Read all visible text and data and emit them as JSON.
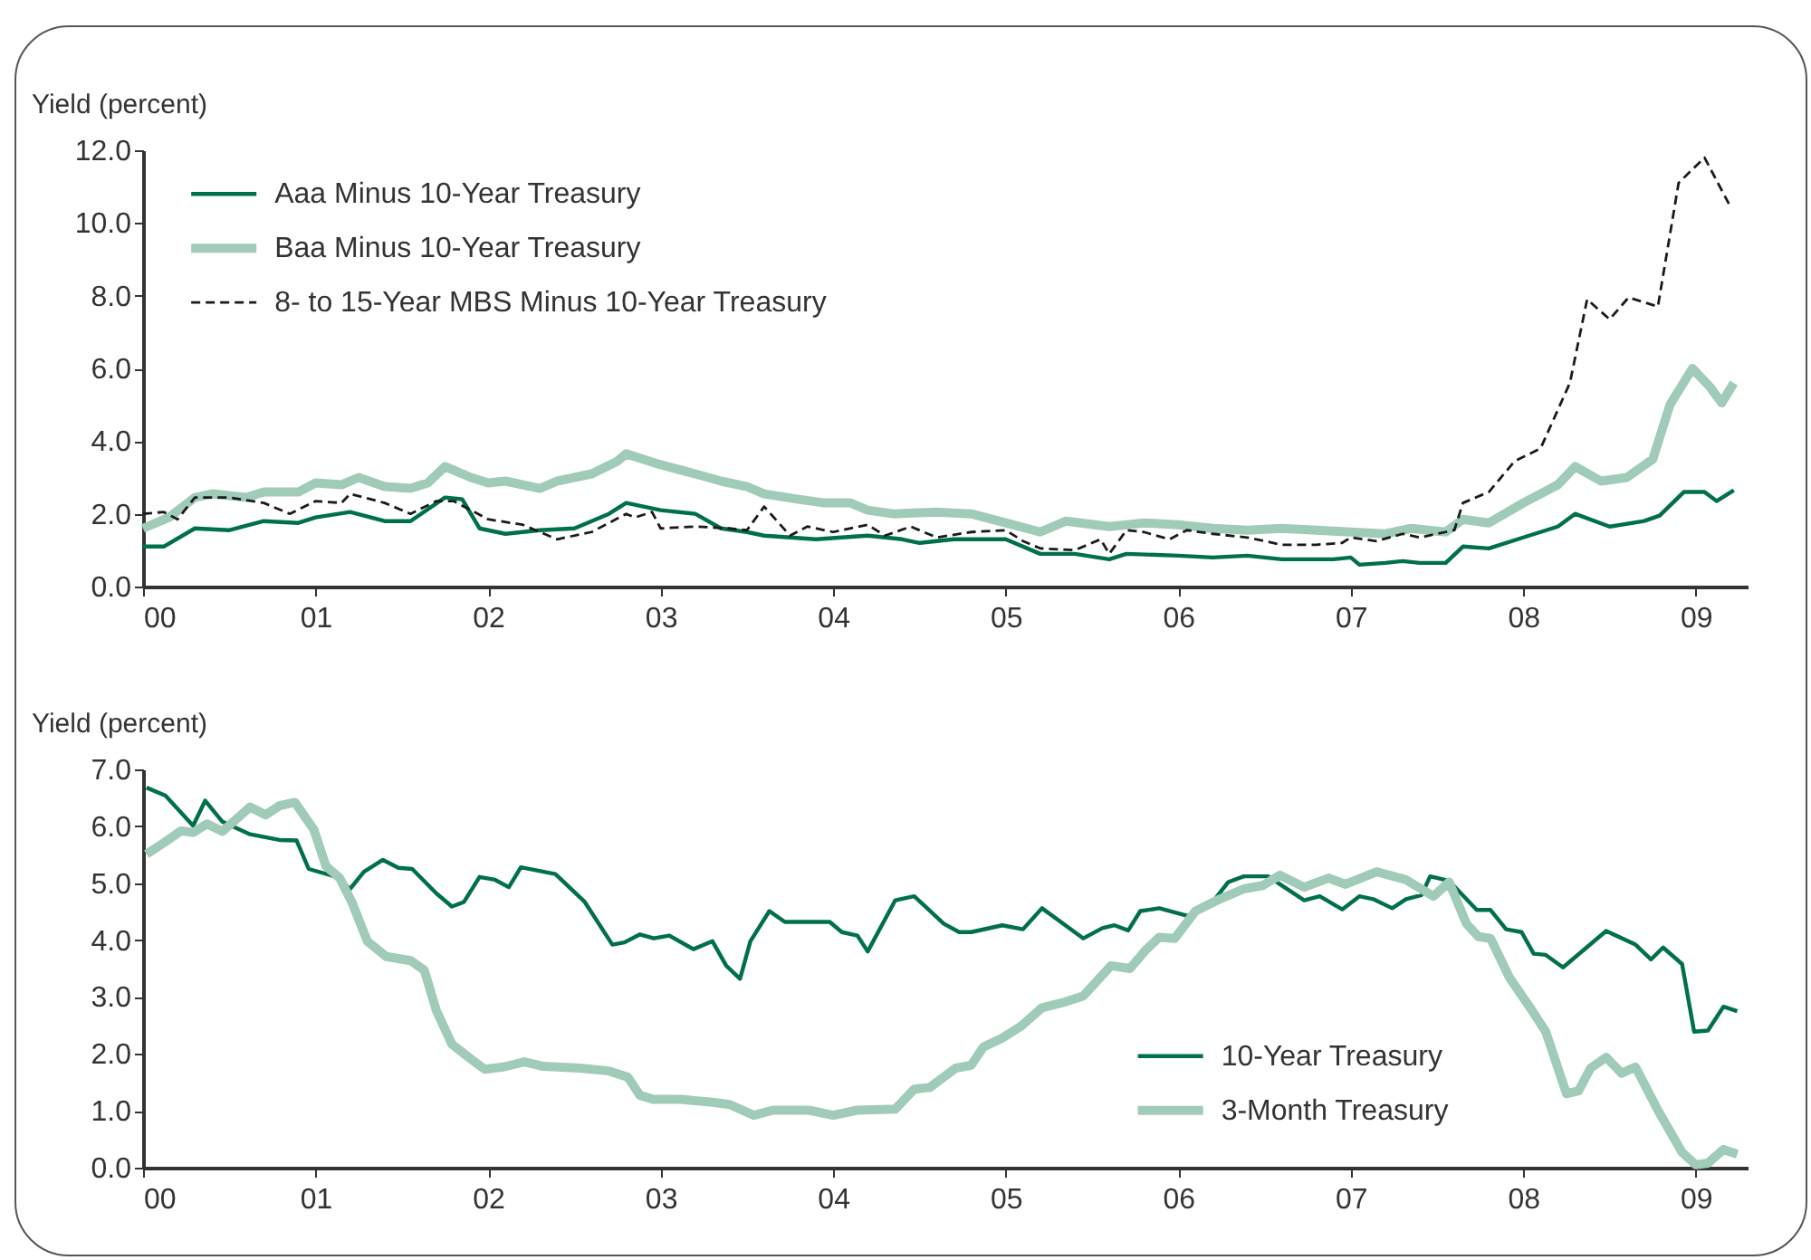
{
  "chart_data": [
    {
      "type": "line",
      "ylabel": "Yield (percent)",
      "legend": "top left",
      "xlim": [
        2000,
        2009.3
      ],
      "xticks": [
        {
          "value": 2000,
          "label": "00"
        },
        {
          "value": 2001,
          "label": "01"
        },
        {
          "value": 2002,
          "label": "02"
        },
        {
          "value": 2003,
          "label": "03"
        },
        {
          "value": 2004,
          "label": "04"
        },
        {
          "value": 2005,
          "label": "05"
        },
        {
          "value": 2006,
          "label": "06"
        },
        {
          "value": 2007,
          "label": "07"
        },
        {
          "value": 2008,
          "label": "08"
        },
        {
          "value": 2009,
          "label": "09"
        }
      ],
      "ylim": [
        0,
        12
      ],
      "yticks": [
        {
          "value": 0,
          "label": "0.0"
        },
        {
          "value": 2,
          "label": "2.0"
        },
        {
          "value": 4,
          "label": "4.0"
        },
        {
          "value": 6,
          "label": "6.0"
        },
        {
          "value": 8,
          "label": "8.0"
        },
        {
          "value": 10,
          "label": "10.0"
        },
        {
          "value": 12,
          "label": "12.0"
        }
      ],
      "series": [
        {
          "name": "Aaa Minus 10-Year Treasury",
          "color": "#00704a",
          "line_style": "solid",
          "x": [
            2000.0,
            2000.12,
            2000.3,
            2000.5,
            2000.7,
            2000.9,
            2001.0,
            2001.2,
            2001.4,
            2001.55,
            2001.75,
            2001.85,
            2001.95,
            2002.1,
            2002.3,
            2002.5,
            2002.7,
            2002.8,
            2003.0,
            2003.2,
            2003.35,
            2003.5,
            2003.6,
            2003.9,
            2004.2,
            2004.4,
            2004.5,
            2004.7,
            2005.0,
            2005.2,
            2005.4,
            2005.6,
            2005.7,
            2006.0,
            2006.2,
            2006.4,
            2006.6,
            2006.9,
            2007.0,
            2007.05,
            2007.2,
            2007.3,
            2007.4,
            2007.55,
            2007.65,
            2007.8,
            2008.0,
            2008.2,
            2008.3,
            2008.5,
            2008.7,
            2008.79,
            2008.93,
            2009.05,
            2009.12,
            2009.22
          ],
          "values": [
            1.1,
            1.1,
            1.6,
            1.55,
            1.8,
            1.75,
            1.9,
            2.05,
            1.8,
            1.8,
            2.45,
            2.4,
            1.6,
            1.45,
            1.55,
            1.6,
            2.0,
            2.3,
            2.1,
            2.0,
            1.6,
            1.5,
            1.4,
            1.3,
            1.4,
            1.3,
            1.2,
            1.3,
            1.3,
            0.9,
            0.9,
            0.75,
            0.9,
            0.85,
            0.8,
            0.85,
            0.75,
            0.75,
            0.8,
            0.6,
            0.65,
            0.7,
            0.65,
            0.65,
            1.1,
            1.05,
            1.35,
            1.65,
            2.0,
            1.65,
            1.8,
            1.95,
            2.6,
            2.6,
            2.35,
            2.65
          ]
        },
        {
          "name": "Baa Minus 10-Year Treasury",
          "color": "#9fcbb8",
          "line_style": "solid",
          "x": [
            2000.0,
            2000.15,
            2000.3,
            2000.4,
            2000.6,
            2000.7,
            2000.9,
            2001.0,
            2001.15,
            2001.25,
            2001.4,
            2001.55,
            2001.65,
            2001.75,
            2001.9,
            2002.0,
            2002.1,
            2002.3,
            2002.4,
            2002.6,
            2002.75,
            2002.8,
            2003.0,
            2003.2,
            2003.35,
            2003.5,
            2003.6,
            2003.8,
            2003.95,
            2004.1,
            2004.2,
            2004.35,
            2004.6,
            2004.8,
            2005.0,
            2005.2,
            2005.35,
            2005.6,
            2005.8,
            2006.0,
            2006.2,
            2006.4,
            2006.6,
            2006.8,
            2007.0,
            2007.2,
            2007.35,
            2007.55,
            2007.65,
            2007.8,
            2008.0,
            2008.2,
            2008.3,
            2008.45,
            2008.6,
            2008.75,
            2008.85,
            2008.98,
            2009.08,
            2009.15,
            2009.22
          ],
          "values": [
            1.6,
            1.9,
            2.45,
            2.55,
            2.45,
            2.6,
            2.6,
            2.85,
            2.8,
            3.0,
            2.75,
            2.7,
            2.85,
            3.3,
            3.0,
            2.85,
            2.9,
            2.7,
            2.9,
            3.1,
            3.45,
            3.65,
            3.35,
            3.1,
            2.9,
            2.75,
            2.55,
            2.4,
            2.3,
            2.3,
            2.1,
            2.0,
            2.05,
            2.0,
            1.75,
            1.5,
            1.8,
            1.65,
            1.75,
            1.7,
            1.6,
            1.55,
            1.6,
            1.55,
            1.5,
            1.45,
            1.6,
            1.5,
            1.85,
            1.75,
            2.3,
            2.8,
            3.3,
            2.9,
            3.0,
            3.5,
            5.0,
            6.0,
            5.5,
            5.05,
            5.6
          ]
        },
        {
          "name": "8- to 15-Year MBS Minus 10-Year Treasury",
          "color": "#1a1a1a",
          "line_style": "dashed",
          "x": [
            2000.0,
            2000.12,
            2000.2,
            2000.3,
            2000.5,
            2000.7,
            2000.85,
            2001.0,
            2001.15,
            2001.2,
            2001.4,
            2001.55,
            2001.7,
            2001.8,
            2002.0,
            2002.2,
            2002.4,
            2002.6,
            2002.8,
            2002.85,
            2002.95,
            2003.0,
            2003.2,
            2003.4,
            2003.5,
            2003.6,
            2003.75,
            2003.85,
            2004.0,
            2004.2,
            2004.3,
            2004.45,
            2004.6,
            2004.8,
            2005.0,
            2005.1,
            2005.2,
            2005.4,
            2005.55,
            2005.6,
            2005.7,
            2005.8,
            2005.95,
            2006.05,
            2006.2,
            2006.4,
            2006.6,
            2006.8,
            2006.95,
            2007.0,
            2007.15,
            2007.3,
            2007.4,
            2007.55,
            2007.6,
            2007.65,
            2007.8,
            2007.95,
            2008.1,
            2008.27,
            2008.37,
            2008.5,
            2008.61,
            2008.78,
            2008.9,
            2009.05,
            2009.2
          ],
          "values": [
            2.0,
            2.05,
            1.85,
            2.45,
            2.45,
            2.3,
            2.0,
            2.35,
            2.3,
            2.55,
            2.3,
            2.0,
            2.35,
            2.35,
            1.85,
            1.7,
            1.3,
            1.5,
            2.0,
            1.9,
            2.05,
            1.6,
            1.65,
            1.6,
            1.55,
            2.2,
            1.4,
            1.65,
            1.5,
            1.7,
            1.4,
            1.65,
            1.35,
            1.5,
            1.55,
            1.25,
            1.05,
            1.0,
            1.3,
            0.9,
            1.55,
            1.5,
            1.3,
            1.55,
            1.45,
            1.35,
            1.15,
            1.15,
            1.2,
            1.35,
            1.25,
            1.45,
            1.35,
            1.5,
            1.55,
            2.3,
            2.6,
            3.45,
            3.8,
            5.6,
            7.9,
            7.35,
            7.95,
            7.7,
            11.1,
            11.8,
            10.45
          ]
        }
      ]
    },
    {
      "type": "line",
      "ylabel": "Yield (percent)",
      "legend": "bottom right",
      "xlim": [
        2000,
        2009.3
      ],
      "xticks": [
        {
          "value": 2000,
          "label": "00"
        },
        {
          "value": 2001,
          "label": "01"
        },
        {
          "value": 2002,
          "label": "02"
        },
        {
          "value": 2003,
          "label": "03"
        },
        {
          "value": 2004,
          "label": "04"
        },
        {
          "value": 2005,
          "label": "05"
        },
        {
          "value": 2006,
          "label": "06"
        },
        {
          "value": 2007,
          "label": "07"
        },
        {
          "value": 2008,
          "label": "08"
        },
        {
          "value": 2009,
          "label": "09"
        }
      ],
      "ylim": [
        0,
        7
      ],
      "yticks": [
        {
          "value": 0,
          "label": "0.0"
        },
        {
          "value": 1,
          "label": "1.0"
        },
        {
          "value": 2,
          "label": "2.0"
        },
        {
          "value": 3,
          "label": "3.0"
        },
        {
          "value": 4,
          "label": "4.0"
        },
        {
          "value": 5,
          "label": "5.0"
        },
        {
          "value": 6,
          "label": "6.0"
        },
        {
          "value": 7,
          "label": "7.0"
        }
      ],
      "series": [
        {
          "name": "10-Year Treasury",
          "color": "#00704a",
          "line_style": "solid",
          "x": [
            2000.02,
            2000.13,
            2000.29,
            2000.36,
            2000.46,
            2000.62,
            2000.79,
            2000.89,
            2000.96,
            2001.11,
            2001.2,
            2001.28,
            2001.39,
            2001.48,
            2001.56,
            2001.7,
            2001.79,
            2001.86,
            2001.95,
            2002.04,
            2002.12,
            2002.19,
            2002.39,
            2002.56,
            2002.72,
            2002.79,
            2002.88,
            2002.96,
            2003.05,
            2003.19,
            2003.3,
            2003.38,
            2003.46,
            2003.52,
            2003.63,
            2003.72,
            2003.98,
            2004.05,
            2004.14,
            2004.2,
            2004.36,
            2004.47,
            2004.64,
            2004.73,
            2004.8,
            2004.98,
            2005.1,
            2005.21,
            2005.45,
            2005.56,
            2005.63,
            2005.71,
            2005.78,
            2005.89,
            2006.06,
            2006.2,
            2006.29,
            2006.38,
            2006.52,
            2006.73,
            2006.82,
            2006.95,
            2007.05,
            2007.13,
            2007.24,
            2007.32,
            2007.41,
            2007.46,
            2007.57,
            2007.73,
            2007.81,
            2007.9,
            2007.99,
            2008.06,
            2008.13,
            2008.23,
            2008.48,
            2008.65,
            2008.74,
            2008.81,
            2008.92,
            2008.99,
            2009.07,
            2009.16,
            2009.24
          ],
          "values": [
            6.68,
            6.54,
            6.01,
            6.45,
            6.08,
            5.86,
            5.76,
            5.75,
            5.25,
            5.12,
            4.9,
            5.2,
            5.41,
            5.27,
            5.25,
            4.82,
            4.59,
            4.67,
            5.11,
            5.06,
            4.93,
            5.28,
            5.16,
            4.67,
            3.92,
            3.96,
            4.1,
            4.03,
            4.08,
            3.84,
            3.98,
            3.55,
            3.32,
            3.98,
            4.51,
            4.32,
            4.32,
            4.14,
            4.08,
            3.8,
            4.7,
            4.77,
            4.29,
            4.14,
            4.14,
            4.26,
            4.19,
            4.56,
            4.03,
            4.21,
            4.26,
            4.17,
            4.51,
            4.56,
            4.42,
            4.67,
            5.02,
            5.12,
            5.12,
            4.7,
            4.77,
            4.54,
            4.77,
            4.72,
            4.56,
            4.72,
            4.79,
            5.12,
            5.04,
            4.53,
            4.53,
            4.19,
            4.14,
            3.76,
            3.74,
            3.52,
            4.16,
            3.92,
            3.66,
            3.87,
            3.58,
            2.39,
            2.41,
            2.83,
            2.75
          ]
        },
        {
          "name": "3-Month Treasury",
          "color": "#9fcbb8",
          "line_style": "solid",
          "x": [
            2000.02,
            2000.13,
            2000.22,
            2000.29,
            2000.37,
            2000.46,
            2000.62,
            2000.71,
            2000.79,
            2000.88,
            2000.99,
            2001.06,
            2001.14,
            2001.21,
            2001.3,
            2001.41,
            2001.55,
            2001.63,
            2001.7,
            2001.79,
            2001.9,
            2001.98,
            2002.09,
            2002.21,
            2002.32,
            2002.53,
            2002.7,
            2002.81,
            2002.88,
            2002.96,
            2003.12,
            2003.3,
            2003.4,
            2003.54,
            2003.65,
            2003.86,
            2004.0,
            2004.14,
            2004.36,
            2004.47,
            2004.56,
            2004.71,
            2004.8,
            2004.87,
            2004.98,
            2005.09,
            2005.21,
            2005.33,
            2005.45,
            2005.61,
            2005.72,
            2005.81,
            2005.89,
            2005.98,
            2006.1,
            2006.24,
            2006.38,
            2006.49,
            2006.59,
            2006.73,
            2006.87,
            2006.97,
            2007.15,
            2007.32,
            2007.48,
            2007.57,
            2007.67,
            2007.74,
            2007.81,
            2007.92,
            2008.04,
            2008.13,
            2008.25,
            2008.32,
            2008.39,
            2008.48,
            2008.57,
            2008.65,
            2008.78,
            2008.92,
            2009.0,
            2009.07,
            2009.16,
            2009.24
          ],
          "values": [
            5.51,
            5.73,
            5.92,
            5.89,
            6.04,
            5.91,
            6.34,
            6.2,
            6.36,
            6.42,
            5.94,
            5.3,
            5.09,
            4.67,
            3.98,
            3.71,
            3.64,
            3.47,
            2.76,
            2.17,
            1.91,
            1.73,
            1.77,
            1.86,
            1.78,
            1.75,
            1.7,
            1.59,
            1.27,
            1.2,
            1.2,
            1.15,
            1.11,
            0.92,
            1.01,
            1.01,
            0.92,
            1.01,
            1.03,
            1.38,
            1.41,
            1.75,
            1.8,
            2.12,
            2.28,
            2.49,
            2.81,
            2.9,
            3.02,
            3.55,
            3.5,
            3.82,
            4.05,
            4.03,
            4.51,
            4.72,
            4.9,
            4.96,
            5.14,
            4.93,
            5.09,
            4.98,
            5.2,
            5.06,
            4.77,
            5.02,
            4.29,
            4.06,
            4.03,
            3.34,
            2.81,
            2.39,
            1.3,
            1.35,
            1.75,
            1.94,
            1.66,
            1.77,
            1.01,
            0.27,
            0.05,
            0.08,
            0.32,
            0.24
          ]
        }
      ]
    }
  ]
}
